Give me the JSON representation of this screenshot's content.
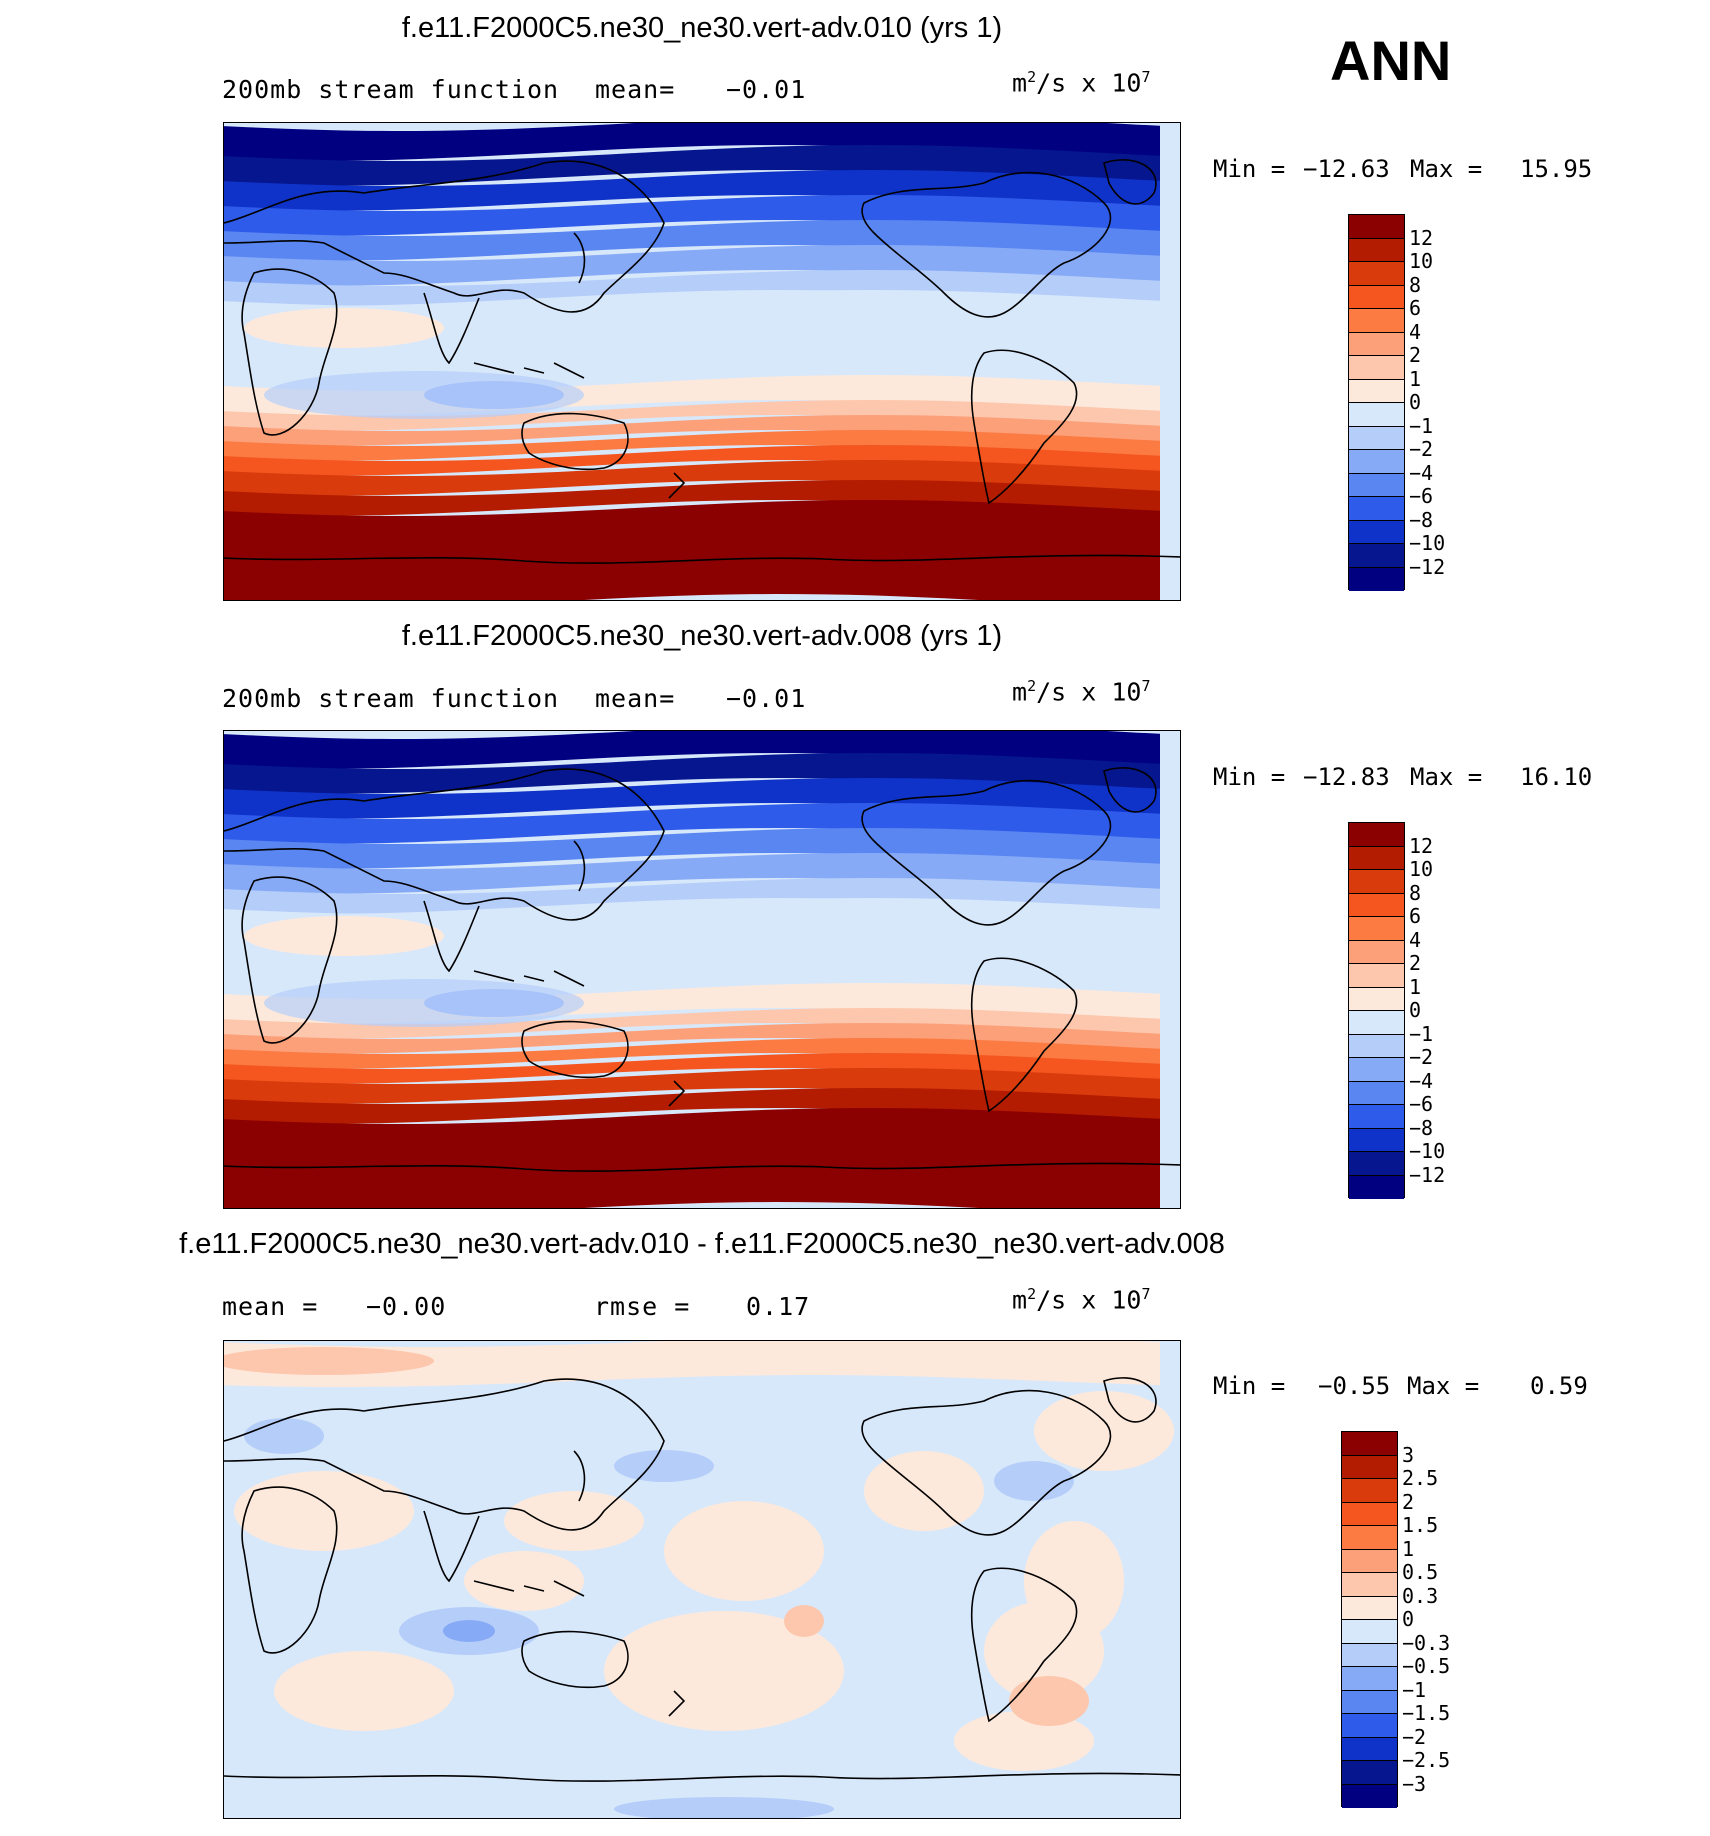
{
  "season": "ANN",
  "panels": [
    {
      "title": "f.e11.F2000C5.ne30_ne30.vert-adv.010 (yrs 1)",
      "subtitle_left": "200mb stream function",
      "mean_label": "mean=",
      "mean_value": "−0.01",
      "units_base": "m",
      "units_exp": "2",
      "units_rest": "/s x 10",
      "units_pow": "7",
      "min_label": "Min =",
      "min_value": "−12.63",
      "max_label": "Max =",
      "max_value": "15.95",
      "field": "total"
    },
    {
      "title": "f.e11.F2000C5.ne30_ne30.vert-adv.008 (yrs 1)",
      "subtitle_left": "200mb stream function",
      "mean_label": "mean=",
      "mean_value": "−0.01",
      "units_base": "m",
      "units_exp": "2",
      "units_rest": "/s x 10",
      "units_pow": "7",
      "min_label": "Min =",
      "min_value": "−12.83",
      "max_label": "Max =",
      "max_value": "16.10",
      "field": "total"
    },
    {
      "title": "f.e11.F2000C5.ne30_ne30.vert-adv.010 - f.e11.F2000C5.ne30_ne30.vert-adv.008",
      "subtitle_left": "mean =",
      "mean_label": "",
      "mean_value": "−0.00",
      "rmse_label": "rmse =",
      "rmse_value": "0.17",
      "units_base": "m",
      "units_exp": "2",
      "units_rest": "/s x 10",
      "units_pow": "7",
      "min_label": "Min =",
      "min_value": "−0.55",
      "max_label": "Max =",
      "max_value": "0.59",
      "field": "diff"
    }
  ],
  "colorbar_main": {
    "labels": [
      "12",
      "10",
      "8",
      "6",
      "4",
      "2",
      "1",
      "0",
      "−1",
      "−2",
      "−4",
      "−6",
      "−8",
      "−10",
      "−12"
    ],
    "colors": [
      "#8b0000",
      "#b31c00",
      "#d93b0c",
      "#f5561f",
      "#fb7b43",
      "#fca07a",
      "#fdc7ad",
      "#fde9db",
      "#d8e8fb",
      "#b5cdf9",
      "#87aaf7",
      "#5a86f1",
      "#2f5bea",
      "#0f33c8",
      "#05168f",
      "#000080"
    ]
  },
  "colorbar_diff": {
    "labels": [
      "3",
      "2.5",
      "2",
      "1.5",
      "1",
      "0.5",
      "0.3",
      "0",
      "−0.3",
      "−0.5",
      "−1",
      "−1.5",
      "−2",
      "−2.5",
      "−3"
    ],
    "colors": [
      "#8b0000",
      "#b31c00",
      "#d93b0c",
      "#f5561f",
      "#fb7b43",
      "#fca07a",
      "#fdc7ad",
      "#fde9db",
      "#d8e8fb",
      "#b5cdf9",
      "#87aaf7",
      "#5a86f1",
      "#2f5bea",
      "#0f33c8",
      "#05168f",
      "#000080"
    ]
  }
}
